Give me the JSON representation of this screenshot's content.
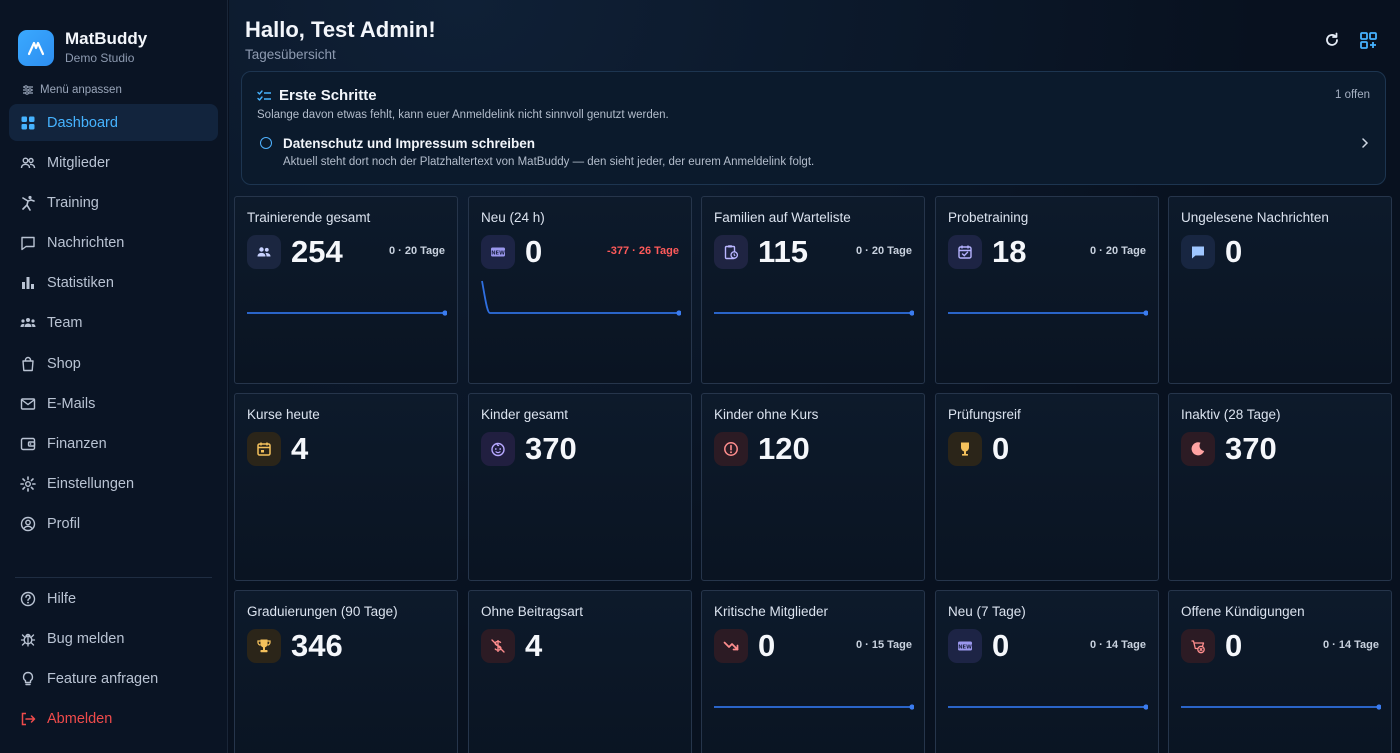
{
  "brand": {
    "name": "MatBuddy",
    "subtitle": "Demo Studio"
  },
  "sidebar": {
    "customize_label": "Menü anpassen",
    "items": [
      {
        "label": "Dashboard",
        "icon": "grid-icon",
        "active": true
      },
      {
        "label": "Mitglieder",
        "icon": "users-icon"
      },
      {
        "label": "Training",
        "icon": "martial-arts-icon"
      },
      {
        "label": "Nachrichten",
        "icon": "chat-icon"
      },
      {
        "label": "Statistiken",
        "icon": "bar-chart-icon"
      },
      {
        "label": "Team",
        "icon": "team-icon"
      },
      {
        "label": "Shop",
        "icon": "shopping-bag-icon"
      },
      {
        "label": "E-Mails",
        "icon": "mail-icon"
      },
      {
        "label": "Finanzen",
        "icon": "wallet-icon"
      },
      {
        "label": "Einstellungen",
        "icon": "gear-icon"
      },
      {
        "label": "Profil",
        "icon": "user-circle-icon"
      }
    ],
    "bottom_items": [
      {
        "label": "Hilfe",
        "icon": "help-icon"
      },
      {
        "label": "Bug melden",
        "icon": "bug-icon"
      },
      {
        "label": "Feature anfragen",
        "icon": "lightbulb-icon"
      },
      {
        "label": "Abmelden",
        "icon": "logout-icon"
      }
    ]
  },
  "header": {
    "greeting": "Hallo, Test Admin!",
    "subtitle": "Tagesübersicht"
  },
  "onboarding": {
    "title": "Erste Schritte",
    "count": "1 offen",
    "description": "Solange davon etwas fehlt, kann euer Anmeldelink nicht sinnvoll genutzt werden.",
    "task_title": "Datenschutz und Impressum schreiben",
    "task_description": "Aktuell steht dort noch der Platzhaltertext von MatBuddy — den sieht jeder, der eurem Anmeldelink folgt."
  },
  "cards": [
    {
      "title": "Trainierende gesamt",
      "value": "254",
      "trend": "0 · 20 Tage",
      "icon": "people-icon",
      "icon_bg": "#1b2640",
      "icon_color": "#c8d2ff",
      "spark": "flat"
    },
    {
      "title": "Neu (24 h)",
      "value": "0",
      "trend": "-377 · 26 Tage",
      "trend_negative": true,
      "icon": "new-badge-icon",
      "icon_bg": "#1d2445",
      "icon_color": "#a8a4ff",
      "spark": "drop"
    },
    {
      "title": "Familien auf Warteliste",
      "value": "115",
      "trend": "0 · 20 Tage",
      "icon": "clipboard-clock-icon",
      "icon_bg": "#1f2442",
      "icon_color": "#b9b6ff",
      "spark": "flat"
    },
    {
      "title": "Probetraining",
      "value": "18",
      "trend": "0 · 20 Tage",
      "icon": "calendar-check-icon",
      "icon_bg": "#1d2444",
      "icon_color": "#b5b2ff",
      "spark": "flat"
    },
    {
      "title": "Ungelesene Nachrichten",
      "value": "0",
      "trend": "",
      "icon": "message-icon",
      "icon_bg": "#182641",
      "icon_color": "#9fc6ff",
      "spark": "none"
    },
    {
      "title": "Kurse heute",
      "value": "4",
      "trend": "",
      "icon": "calendar-icon",
      "icon_bg": "#2b2519",
      "icon_color": "#f4c15c",
      "spark": "none"
    },
    {
      "title": "Kinder gesamt",
      "value": "370",
      "trend": "",
      "icon": "child-face-icon",
      "icon_bg": "#211f40",
      "icon_color": "#b7a8ff",
      "spark": "none"
    },
    {
      "title": "Kinder ohne Kurs",
      "value": "120",
      "trend": "",
      "icon": "alert-circle-icon",
      "icon_bg": "#2c1b24",
      "icon_color": "#ff8d8d",
      "spark": "none"
    },
    {
      "title": "Prüfungsreif",
      "value": "0",
      "trend": "",
      "icon": "medal-icon",
      "icon_bg": "#2b2519",
      "icon_color": "#f4c15c",
      "spark": "none"
    },
    {
      "title": "Inaktiv (28 Tage)",
      "value": "370",
      "trend": "",
      "icon": "moon-icon",
      "icon_bg": "#2c1b24",
      "icon_color": "#ffa3a3",
      "spark": "none"
    },
    {
      "title": "Graduierungen (90 Tage)",
      "value": "346",
      "trend": "",
      "icon": "trophy-icon",
      "icon_bg": "#2b2519",
      "icon_color": "#f4c15c",
      "spark": "none"
    },
    {
      "title": "Ohne Beitragsart",
      "value": "4",
      "trend": "",
      "icon": "no-money-icon",
      "icon_bg": "#2c1b24",
      "icon_color": "#ff8d8d",
      "spark": "none"
    },
    {
      "title": "Kritische Mitglieder",
      "value": "0",
      "trend": "0 · 15 Tage",
      "icon": "trend-down-icon",
      "icon_bg": "#2c1b24",
      "icon_color": "#ff8d8d",
      "spark": "flat"
    },
    {
      "title": "Neu (7 Tage)",
      "value": "0",
      "trend": "0 · 14 Tage",
      "icon": "new-badge-icon",
      "icon_bg": "#1d2445",
      "icon_color": "#a8a4ff",
      "spark": "flat"
    },
    {
      "title": "Offene Kündigungen",
      "value": "0",
      "trend": "0 · 14 Tage",
      "icon": "cancel-icon",
      "icon_bg": "#2c1b24",
      "icon_color": "#ff8d8d",
      "spark": "flat"
    }
  ],
  "colors": {
    "accent": "#46b3ff",
    "spark": "#2f6fe0",
    "danger": "#ef4b4b"
  }
}
